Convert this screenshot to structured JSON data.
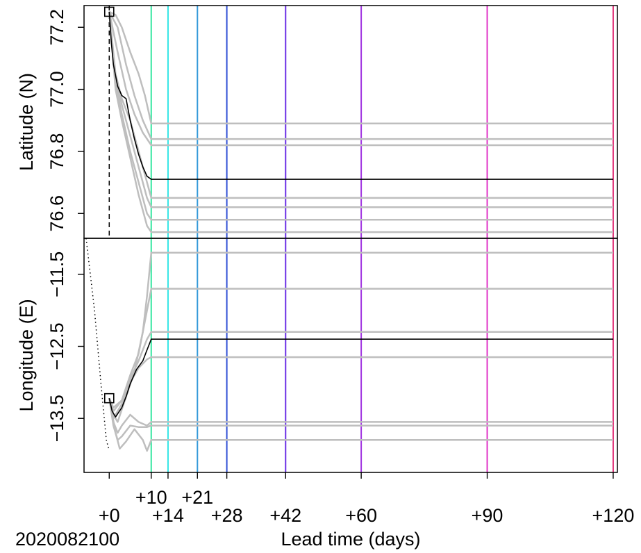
{
  "chart_data": [
    {
      "panel": "top",
      "type": "line",
      "ylabel": "Latitude (N)",
      "ylim": [
        76.52,
        77.27
      ],
      "yticks": [
        "76.6",
        "76.8",
        "77.0",
        "77.2"
      ],
      "start_marker": {
        "x": 0,
        "y": 77.25,
        "shape": "square"
      },
      "mean_series": {
        "color": "#000000",
        "points": [
          [
            0,
            77.25
          ],
          [
            0.5,
            77.15
          ],
          [
            1,
            77.08
          ],
          [
            2,
            77.01
          ],
          [
            3,
            76.98
          ],
          [
            4,
            76.97
          ],
          [
            5,
            76.9
          ],
          [
            6,
            76.84
          ],
          [
            7,
            76.79
          ],
          [
            8,
            76.75
          ],
          [
            9,
            76.72
          ],
          [
            10,
            76.71
          ],
          [
            120,
            76.71
          ]
        ]
      },
      "ensemble_series": [
        {
          "color": "#bebebe",
          "points": [
            [
              0,
              77.25
            ],
            [
              1.5,
              77.24
            ],
            [
              3,
              77.2
            ],
            [
              5,
              77.12
            ],
            [
              7,
              77.05
            ],
            [
              8.5,
              76.98
            ],
            [
              10,
              76.89
            ],
            [
              120,
              76.89
            ]
          ]
        },
        {
          "color": "#bebebe",
          "points": [
            [
              0,
              77.25
            ],
            [
              2,
              77.2
            ],
            [
              4,
              77.08
            ],
            [
              6,
              76.98
            ],
            [
              8,
              76.9
            ],
            [
              10,
              76.84
            ],
            [
              120,
              76.84
            ]
          ]
        },
        {
          "color": "#bebebe",
          "points": [
            [
              0,
              77.25
            ],
            [
              2,
              77.12
            ],
            [
              4,
              77.0
            ],
            [
              6,
              76.92
            ],
            [
              8,
              76.86
            ],
            [
              10,
              76.82
            ],
            [
              120,
              76.82
            ]
          ]
        },
        {
          "color": "#bebebe",
          "points": [
            [
              0,
              77.25
            ],
            [
              1.5,
              77.05
            ],
            [
              3,
              76.97
            ],
            [
              5,
              76.9
            ],
            [
              7,
              76.8
            ],
            [
              9,
              76.7
            ],
            [
              10,
              76.65
            ],
            [
              120,
              76.65
            ]
          ]
        },
        {
          "color": "#bebebe",
          "points": [
            [
              0,
              77.25
            ],
            [
              1.5,
              77.03
            ],
            [
              3,
              76.95
            ],
            [
              5,
              76.85
            ],
            [
              7,
              76.75
            ],
            [
              9,
              76.65
            ],
            [
              10,
              76.62
            ],
            [
              120,
              76.62
            ]
          ]
        },
        {
          "color": "#bebebe",
          "points": [
            [
              0,
              77.25
            ],
            [
              1.5,
              77.02
            ],
            [
              3,
              76.92
            ],
            [
              5,
              76.8
            ],
            [
              7,
              76.7
            ],
            [
              9,
              76.6
            ],
            [
              10,
              76.58
            ],
            [
              120,
              76.58
            ]
          ]
        },
        {
          "color": "#bebebe",
          "points": [
            [
              0,
              77.25
            ],
            [
              1.5,
              77.0
            ],
            [
              3,
              76.9
            ],
            [
              5,
              76.78
            ],
            [
              7,
              76.66
            ],
            [
              9,
              76.56
            ],
            [
              10,
              76.54
            ],
            [
              120,
              76.54
            ]
          ]
        }
      ]
    },
    {
      "panel": "bottom",
      "type": "line",
      "ylabel": "Longitude (E)",
      "ylim": [
        -14.25,
        -11.0
      ],
      "yticks": [
        "−13.5",
        "−12.5",
        "−11.5"
      ],
      "start_marker": {
        "x": 0,
        "y": -13.22,
        "shape": "square"
      },
      "dotted_segment": {
        "color": "#000000",
        "points": [
          [
            -5.5,
            -11.0
          ],
          [
            -3.5,
            -12.0
          ],
          [
            -2,
            -13.0
          ],
          [
            -0.7,
            -13.8
          ],
          [
            0,
            -13.95
          ]
        ]
      },
      "mean_series": {
        "color": "#000000",
        "points": [
          [
            0,
            -13.22
          ],
          [
            0.7,
            -13.4
          ],
          [
            1.5,
            -13.48
          ],
          [
            3,
            -13.35
          ],
          [
            4,
            -13.2
          ],
          [
            5,
            -13.02
          ],
          [
            6.5,
            -12.82
          ],
          [
            8,
            -12.7
          ],
          [
            9,
            -12.55
          ],
          [
            10,
            -12.4
          ],
          [
            120,
            -12.4
          ]
        ]
      },
      "ensemble_series": [
        {
          "color": "#bebebe",
          "points": [
            [
              0,
              -13.22
            ],
            [
              1,
              -13.45
            ],
            [
              2,
              -13.55
            ],
            [
              4,
              -13.2
            ],
            [
              6,
              -12.85
            ],
            [
              8,
              -12.3
            ],
            [
              9,
              -11.8
            ],
            [
              10,
              -11.2
            ],
            [
              120,
              -11.2
            ]
          ]
        },
        {
          "color": "#bebebe",
          "points": [
            [
              0,
              -13.22
            ],
            [
              1,
              -13.35
            ],
            [
              3,
              -13.25
            ],
            [
              5,
              -12.9
            ],
            [
              7,
              -12.6
            ],
            [
              9,
              -12.0
            ],
            [
              10,
              -11.7
            ],
            [
              120,
              -11.7
            ]
          ]
        },
        {
          "color": "#bebebe",
          "points": [
            [
              0,
              -13.22
            ],
            [
              1,
              -13.5
            ],
            [
              3,
              -13.3
            ],
            [
              5,
              -12.95
            ],
            [
              7,
              -12.7
            ],
            [
              9,
              -12.4
            ],
            [
              10,
              -12.3
            ],
            [
              120,
              -12.3
            ]
          ]
        },
        {
          "color": "#bebebe",
          "points": [
            [
              0,
              -13.22
            ],
            [
              1,
              -13.4
            ],
            [
              3,
              -13.25
            ],
            [
              5,
              -13.0
            ],
            [
              7,
              -12.8
            ],
            [
              9,
              -12.68
            ],
            [
              10,
              -12.65
            ],
            [
              120,
              -12.65
            ]
          ]
        },
        {
          "color": "#bebebe",
          "points": [
            [
              0,
              -13.22
            ],
            [
              1,
              -13.55
            ],
            [
              2,
              -13.7
            ],
            [
              3,
              -13.6
            ],
            [
              5,
              -13.45
            ],
            [
              7,
              -13.55
            ],
            [
              9,
              -13.6
            ],
            [
              10,
              -13.55
            ],
            [
              120,
              -13.55
            ]
          ]
        },
        {
          "color": "#bebebe",
          "points": [
            [
              0,
              -13.22
            ],
            [
              1,
              -13.6
            ],
            [
              2,
              -13.8
            ],
            [
              3,
              -13.75
            ],
            [
              5,
              -13.6
            ],
            [
              7,
              -13.62
            ],
            [
              9,
              -13.62
            ],
            [
              10,
              -13.6
            ],
            [
              120,
              -13.6
            ]
          ]
        },
        {
          "color": "#bebebe",
          "points": [
            [
              0,
              -13.22
            ],
            [
              1.5,
              -13.7
            ],
            [
              2.5,
              -13.92
            ],
            [
              4,
              -13.82
            ],
            [
              6,
              -13.65
            ],
            [
              8,
              -13.8
            ],
            [
              9,
              -13.95
            ],
            [
              10,
              -13.8
            ],
            [
              120,
              -13.8
            ]
          ]
        }
      ]
    }
  ],
  "xaxis": {
    "label": "Lead time (days)",
    "date_label": "2020082100",
    "xlim": [
      -6,
      121
    ],
    "ticks": [
      {
        "value": 0,
        "label": "+0",
        "row": 2
      },
      {
        "value": 10,
        "label": "+10",
        "row": 1
      },
      {
        "value": 14,
        "label": "+14",
        "row": 2
      },
      {
        "value": 21,
        "label": "+21",
        "row": 1
      },
      {
        "value": 28,
        "label": "+28",
        "row": 2
      },
      {
        "value": 42,
        "label": "+42",
        "row": 2
      },
      {
        "value": 60,
        "label": "+60",
        "row": 2
      },
      {
        "value": 90,
        "label": "+90",
        "row": 2
      },
      {
        "value": 120,
        "label": "+120",
        "row": 2
      }
    ]
  },
  "reference_lines": [
    {
      "x": 0,
      "color": "#000000",
      "style": "dashed",
      "panel": "top"
    },
    {
      "x": 10,
      "color": "#33e6a0"
    },
    {
      "x": 14,
      "color": "#33e6e6"
    },
    {
      "x": 21,
      "color": "#3399d9"
    },
    {
      "x": 28,
      "color": "#2f4fd6"
    },
    {
      "x": 42,
      "color": "#6a2ee6"
    },
    {
      "x": 60,
      "color": "#a033e0"
    },
    {
      "x": 90,
      "color": "#e033c8"
    },
    {
      "x": 120,
      "color": "#e0337a"
    }
  ]
}
